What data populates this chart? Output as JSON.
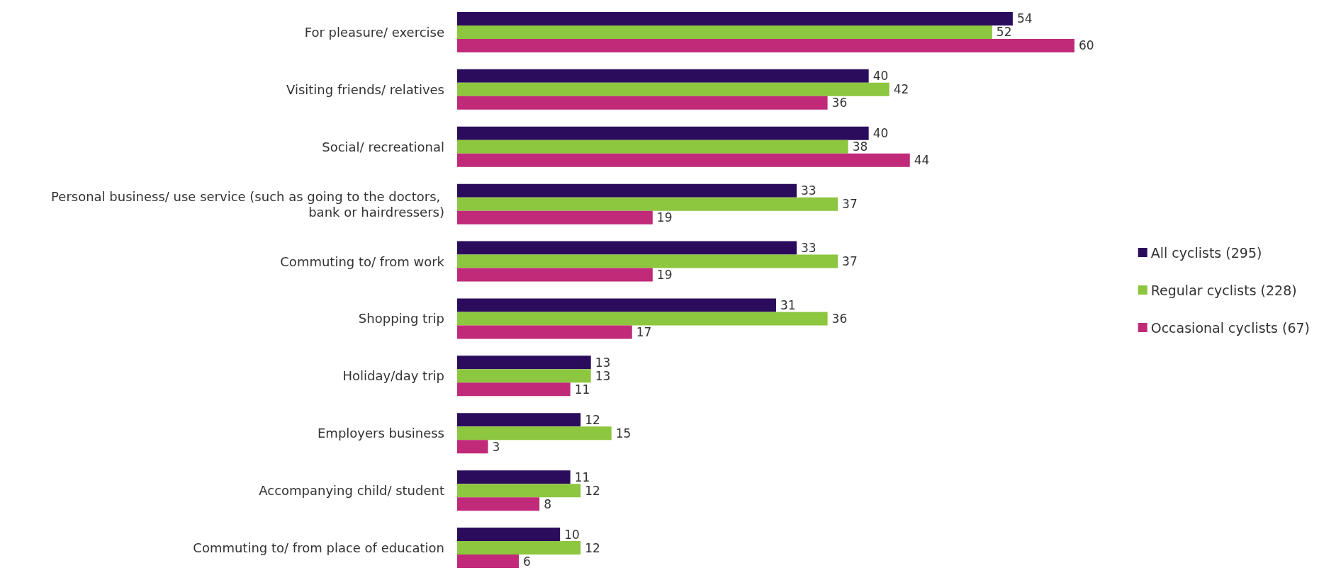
{
  "chart_data": {
    "type": "bar",
    "orientation": "horizontal",
    "categories": [
      "For pleasure/ exercise",
      "Visiting friends/ relatives",
      "Social/ recreational",
      "Personal business/ use service (such as going to the doctors, bank or hairdressers)",
      "Commuting to/ from work",
      "Shopping trip",
      "Holiday/day trip",
      "Employers business",
      "Accompanying child/ student",
      "Commuting to/ from place of education"
    ],
    "series": [
      {
        "name": "All cyclists (295)",
        "color": "#2b0c5c",
        "values": [
          54,
          40,
          40,
          33,
          33,
          31,
          13,
          12,
          11,
          10
        ]
      },
      {
        "name": "Regular cyclists (228)",
        "color": "#8dc63f",
        "values": [
          52,
          42,
          38,
          37,
          37,
          36,
          13,
          15,
          12,
          12
        ]
      },
      {
        "name": "Occasional cyclists (67)",
        "color": "#c02a78",
        "values": [
          60,
          36,
          44,
          19,
          19,
          17,
          11,
          3,
          8,
          6
        ]
      }
    ],
    "data_labels": true,
    "legend": "right"
  }
}
